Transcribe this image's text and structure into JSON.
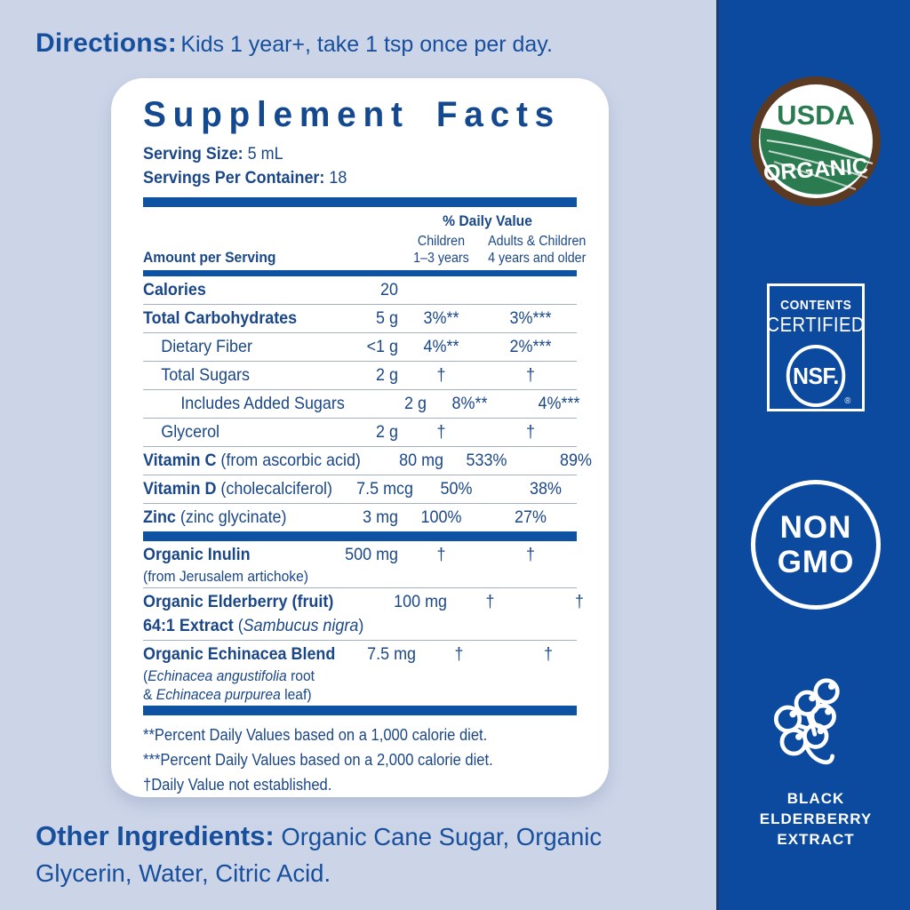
{
  "colors": {
    "background": "#ccd5e8",
    "band_blue": "#0b4a9e",
    "navy_text": "#1b4787",
    "accent_text": "#174f9c",
    "bar_blue": "#0e52a4",
    "seal_green": "#2a7b50",
    "seal_brown": "#5a3a23",
    "white": "#ffffff"
  },
  "directions": {
    "label": "Directions:",
    "text": "Kids 1 year+, take 1 tsp once per day."
  },
  "panel": {
    "title": "Supplement Facts",
    "serving_size_label": "Serving Size:",
    "serving_size_value": "5 mL",
    "servings_label": "Servings Per Container:",
    "servings_value": "18",
    "header": {
      "amount": "Amount per Serving",
      "daily_value": "% Daily Value",
      "col1_line1": "Children",
      "col1_line2": "1–3 years",
      "col2_line1": "Adults & Children",
      "col2_line2": "4 years and older"
    },
    "rows": [
      {
        "lines": [
          {
            "segs": [
              {
                "t": "Calories",
                "b": 1
              }
            ]
          }
        ],
        "amount": "20",
        "child": "",
        "adult": "",
        "indent": 0
      },
      {
        "lines": [
          {
            "segs": [
              {
                "t": "Total Carbohydrates",
                "b": 1
              }
            ]
          }
        ],
        "amount": "5 g",
        "child": "3%**",
        "adult": "3%***",
        "indent": 0
      },
      {
        "lines": [
          {
            "segs": [
              {
                "t": "Dietary Fiber"
              }
            ]
          }
        ],
        "amount": "<1 g",
        "child": "4%**",
        "adult": "2%***",
        "indent": 1
      },
      {
        "lines": [
          {
            "segs": [
              {
                "t": "Total Sugars"
              }
            ]
          }
        ],
        "amount": "2 g",
        "child": "†",
        "adult": "†",
        "indent": 1
      },
      {
        "lines": [
          {
            "segs": [
              {
                "t": "Includes Added Sugars"
              }
            ]
          }
        ],
        "amount": "2 g",
        "child": "8%**",
        "adult": "4%***",
        "indent": 2
      },
      {
        "lines": [
          {
            "segs": [
              {
                "t": "Glycerol"
              }
            ]
          }
        ],
        "amount": "2 g",
        "child": "†",
        "adult": "†",
        "indent": 1
      },
      {
        "lines": [
          {
            "segs": [
              {
                "t": "Vitamin C",
                "b": 1
              },
              {
                "t": " (from ascorbic acid)"
              }
            ]
          }
        ],
        "amount": "80 mg",
        "child": "533%",
        "adult": "89%",
        "indent": 0
      },
      {
        "lines": [
          {
            "segs": [
              {
                "t": "Vitamin D",
                "b": 1
              },
              {
                "t": " (cholecalciferol)"
              }
            ]
          }
        ],
        "amount": "7.5 mcg",
        "child": "50%",
        "adult": "38%",
        "indent": 0
      },
      {
        "lines": [
          {
            "segs": [
              {
                "t": "Zinc",
                "b": 1
              },
              {
                "t": " (zinc glycinate)"
              }
            ]
          }
        ],
        "amount": "3 mg",
        "child": "100%",
        "adult": "27%",
        "indent": 0,
        "last": 1
      },
      {
        "bar": 1
      },
      {
        "lines": [
          {
            "segs": [
              {
                "t": "Organic Inulin",
                "b": 1
              }
            ]
          },
          {
            "segs": [
              {
                "t": "(from Jerusalem artichoke)"
              }
            ],
            "small": 1
          }
        ],
        "amount": "500 mg",
        "child": "†",
        "adult": "†",
        "indent": 0
      },
      {
        "lines": [
          {
            "segs": [
              {
                "t": "Organic Elderberry (fruit)",
                "b": 1
              }
            ]
          },
          {
            "segs": [
              {
                "t": "64:1 Extract ",
                "b": 1
              },
              {
                "t": "("
              },
              {
                "t": "Sambucus nigra",
                "i": 1
              },
              {
                "t": ")"
              }
            ]
          }
        ],
        "amount": "100 mg",
        "child": "†",
        "adult": "†",
        "indent": 0
      },
      {
        "lines": [
          {
            "segs": [
              {
                "t": "Organic Echinacea Blend",
                "b": 1
              }
            ]
          },
          {
            "segs": [
              {
                "t": "("
              },
              {
                "t": "Echinacea angustifolia",
                "i": 1
              },
              {
                "t": " root"
              }
            ],
            "small": 1
          },
          {
            "segs": [
              {
                "t": "& ",
                "b": 0
              },
              {
                "t": "Echinacea purpurea",
                "i": 1
              },
              {
                "t": " leaf)"
              }
            ],
            "small": 1
          }
        ],
        "amount": "7.5 mg",
        "child": "†",
        "adult": "†",
        "indent": 0,
        "last": 1
      },
      {
        "bar": 1
      }
    ],
    "footnotes": [
      "**Percent Daily Values based on a 1,000 calorie diet.",
      "***Percent Daily Values based on a 2,000 calorie diet.",
      "†Daily Value not established."
    ]
  },
  "other_ingredients": {
    "label": "Other Ingredients:",
    "text": " Organic Cane Sugar, Organic Glycerin, Water, Citric Acid."
  },
  "badges": {
    "usda": {
      "line1": "USDA",
      "line2": "ORGANIC"
    },
    "nsf": {
      "line1": "CONTENTS",
      "line2": "CERTIFIED",
      "circle": "NSF.",
      "reg": "®"
    },
    "nongmo": {
      "line1": "NON",
      "line2": "GMO"
    },
    "elderberry": {
      "line1": "BLACK",
      "line2": "ELDERBERRY",
      "line3": "EXTRACT"
    }
  }
}
